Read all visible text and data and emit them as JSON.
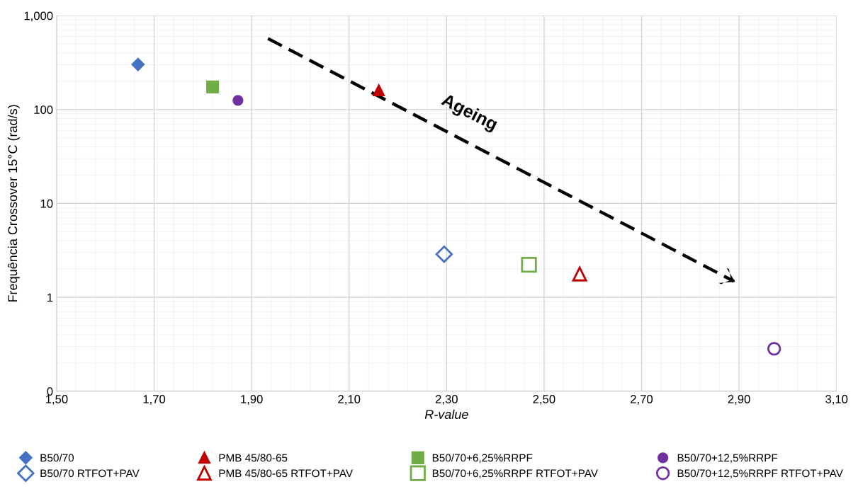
{
  "chart_data": {
    "type": "scatter",
    "xlabel": "R-value",
    "ylabel": "Frequência Crossover 15°C (rad/s)",
    "log": "y",
    "grid": true,
    "legend": "bottom",
    "xlim": [
      1.5,
      3.1
    ],
    "xticks": [
      {
        "value": 1.5,
        "label": "1,50"
      },
      {
        "value": 1.7,
        "label": "1,70"
      },
      {
        "value": 1.9,
        "label": "1,90"
      },
      {
        "value": 2.1,
        "label": "2,10"
      },
      {
        "value": 2.3,
        "label": "2,30"
      },
      {
        "value": 2.5,
        "label": "2,50"
      },
      {
        "value": 2.7,
        "label": "2,70"
      },
      {
        "value": 2.9,
        "label": "2,90"
      },
      {
        "value": 3.1,
        "label": "3,10"
      }
    ],
    "ylim": [
      0.1,
      1000
    ],
    "yticks": [
      {
        "value": 0.1,
        "label": "0"
      },
      1,
      10,
      100,
      {
        "value": 1000,
        "label": "1,000"
      }
    ],
    "annotations": [
      "Ageing"
    ],
    "series": [
      {
        "name": "B50/70",
        "color": "#4472c4",
        "marker": "diamond",
        "x": [
          1.667
        ],
        "values": [
          302
        ]
      },
      {
        "name": "PMB 45/80-65",
        "color": "#c00000",
        "marker": "triangle",
        "x": [
          2.161
        ],
        "values": [
          160
        ]
      },
      {
        "name": "B50/70+6,25%RRPF",
        "color": "#70ad47",
        "marker": "square",
        "x": [
          1.82
        ],
        "values": [
          174
        ]
      },
      {
        "name": "B50/70+12,5%RRPF",
        "color": "#7030a0",
        "marker": "circle",
        "x": [
          1.872
        ],
        "values": [
          125
        ]
      },
      {
        "name": "B50/70 RTFOT+PAV",
        "color": "#4472c4",
        "marker": "diamond",
        "x": [
          2.295
        ],
        "values": [
          2.88
        ]
      },
      {
        "name": "PMB 45/80-65 RTFOT+PAV",
        "color": "#c00000",
        "marker": "triangle",
        "x": [
          2.573
        ],
        "values": [
          1.77
        ]
      },
      {
        "name": "B50/70+6,25%RRPF RTFOT+PAV",
        "color": "#70ad47",
        "marker": "square",
        "x": [
          2.469
        ],
        "values": [
          2.22
        ]
      },
      {
        "name": "B50/70+12,5%RRPF RTFOT+PAV",
        "color": "#7030a0",
        "marker": "circle",
        "x": [
          2.972
        ],
        "values": [
          0.283
        ]
      }
    ]
  }
}
